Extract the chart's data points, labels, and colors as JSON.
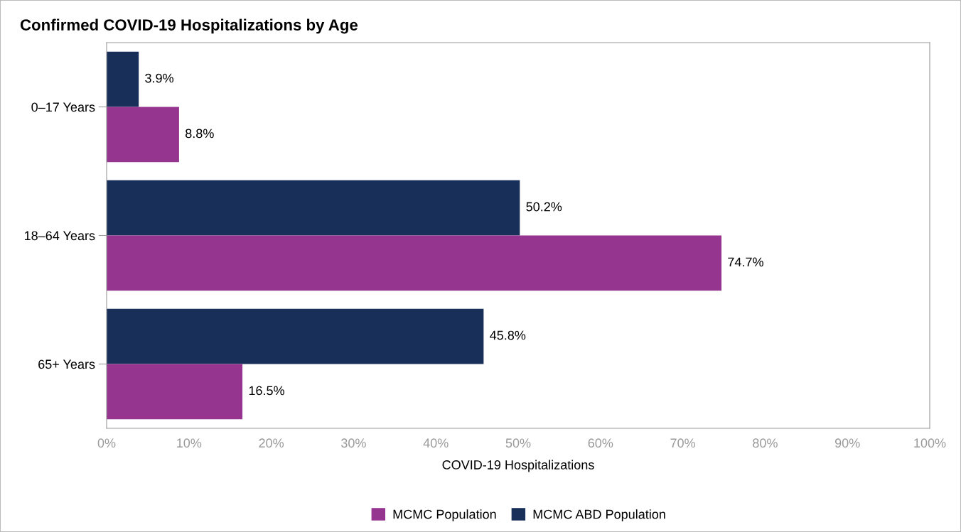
{
  "chart_data": {
    "type": "bar",
    "orientation": "horizontal",
    "title": "Confirmed COVID-19 Hospitalizations by Age",
    "xlabel": "COVID-19 Hospitalizations",
    "categories": [
      "0–17 Years",
      "18–64 Years",
      "65+ Years"
    ],
    "series": [
      {
        "name": "MCMC ABD Population",
        "color": "#172f59",
        "values": [
          3.9,
          50.2,
          45.8
        ],
        "value_labels": [
          "3.9%",
          "50.2%",
          "45.8%"
        ]
      },
      {
        "name": "MCMC Population",
        "color": "#953590",
        "values": [
          8.8,
          74.7,
          16.5
        ],
        "value_labels": [
          "8.8%",
          "74.7%",
          "16.5%"
        ]
      }
    ],
    "xlim": [
      0,
      100
    ],
    "xticks": [
      {
        "value": 0,
        "label": "0%"
      },
      {
        "value": 10,
        "label": "10%"
      },
      {
        "value": 20,
        "label": "20%"
      },
      {
        "value": 30,
        "label": "30%"
      },
      {
        "value": 40,
        "label": "40%"
      },
      {
        "value": 50,
        "label": "50%"
      },
      {
        "value": 60,
        "label": "60%"
      },
      {
        "value": 70,
        "label": "70%"
      },
      {
        "value": 80,
        "label": "80%"
      },
      {
        "value": 90,
        "label": "90%"
      },
      {
        "value": 100,
        "label": "100%"
      }
    ],
    "grid": false,
    "legend": "bottom"
  }
}
